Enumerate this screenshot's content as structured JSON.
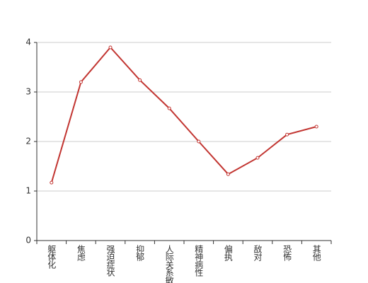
{
  "chart_data": {
    "type": "line",
    "categories": [
      "躯体化",
      "焦虑",
      "强迫症状",
      "抑郁",
      "人际关系敏感",
      "精神病性",
      "偏执",
      "敌对",
      "恐怖",
      "其他"
    ],
    "series": [
      {
        "color": "#c23531",
        "values": [
          1.17,
          3.2,
          3.9,
          3.24,
          2.67,
          2.0,
          1.34,
          1.67,
          2.14,
          2.3
        ]
      }
    ],
    "ylim": [
      0,
      4
    ],
    "yticks": [
      0,
      1,
      2,
      3,
      4
    ],
    "grid": true
  }
}
